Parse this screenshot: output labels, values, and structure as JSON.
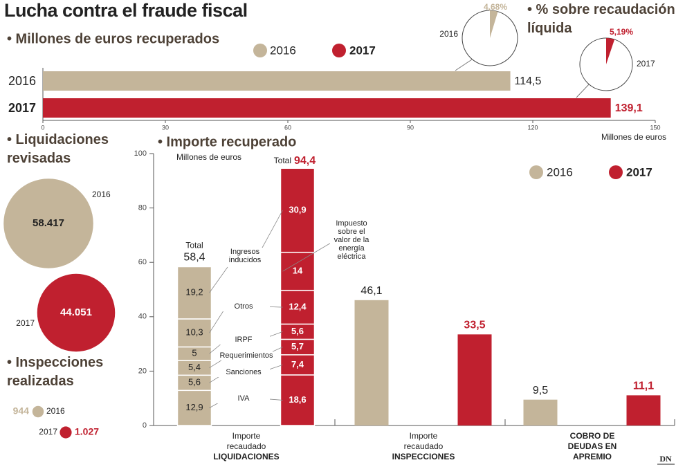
{
  "title": "Lucha contra el fraude fiscal",
  "logo": "DN",
  "chart_data": [
    {
      "type": "hbar",
      "title": "• Millones de euros recuperados",
      "categories": [
        "2016",
        "2017"
      ],
      "values": [
        114.5,
        139.1
      ],
      "value_labels": [
        "114,5",
        "139,1"
      ],
      "colors": [
        "#c4b59a",
        "#c0202f"
      ],
      "xlim": [
        0,
        150
      ],
      "xticks": [
        0,
        30,
        60,
        90,
        120,
        150
      ],
      "xlabel": "Millones de euros"
    },
    {
      "type": "pie",
      "title": "• % sobre recaudación líquida",
      "categories": [
        "2016",
        "2017"
      ],
      "values": [
        4.68,
        5.19
      ],
      "value_labels": [
        "4,68%",
        "5,19%"
      ],
      "colors": [
        "#c4b59a",
        "#c0202f"
      ]
    },
    {
      "type": "bubble",
      "title": "• Liquidaciones revisadas",
      "categories": [
        "2016",
        "2017"
      ],
      "values": [
        58417,
        44051
      ],
      "value_labels": [
        "58.417",
        "44.051"
      ],
      "colors": [
        "#c4b59a",
        "#c0202f"
      ]
    },
    {
      "type": "bubble",
      "title": "• Inspecciones realizadas",
      "categories": [
        "2016",
        "2017"
      ],
      "values": [
        944,
        1027
      ],
      "value_labels": [
        "944",
        "1.027"
      ],
      "colors": [
        "#c4b59a",
        "#c0202f"
      ]
    },
    {
      "type": "grouped_bar",
      "title": "• Importe recuperado",
      "ylabel": "Millones de euros",
      "ylim": [
        0,
        100
      ],
      "yticks": [
        0,
        20,
        40,
        60,
        80,
        100
      ],
      "categories": [
        {
          "label": "Importe recaudado",
          "bold": "LIQUIDACIONES"
        },
        {
          "label": "Importe recaudado",
          "bold": "INSPECCIONES"
        },
        {
          "bold": "COBRO DE DEUDAS EN APREMIO"
        }
      ],
      "series": [
        {
          "name": "2016",
          "color": "#c4b59a",
          "values": [
            58.4,
            46.1,
            9.5
          ],
          "value_labels": [
            "58,4",
            "46,1",
            "9,5"
          ]
        },
        {
          "name": "2017",
          "color": "#c0202f",
          "values": [
            94.4,
            33.5,
            11.1
          ],
          "value_labels": [
            "94,4",
            "33,5",
            "11,1"
          ]
        }
      ],
      "total_label": "Total",
      "breakdown": [
        {
          "name": "IVA",
          "values": [
            12.9,
            18.6
          ],
          "value_labels": [
            "12,9",
            "18,6"
          ]
        },
        {
          "name": "Sanciones",
          "values": [
            5.6,
            7.4
          ],
          "value_labels": [
            "5,6",
            "7,4"
          ]
        },
        {
          "name": "Requerimientos",
          "values": [
            5.4,
            5.7
          ],
          "value_labels": [
            "5,4",
            "5,7"
          ]
        },
        {
          "name": "IRPF",
          "values": [
            5,
            5.6
          ],
          "value_labels": [
            "5",
            "5,6"
          ]
        },
        {
          "name": "Otros",
          "values": [
            10.3,
            12.4
          ],
          "value_labels": [
            "10,3",
            "12,4"
          ]
        },
        {
          "name": "Impuesto sobre el valor de la energía eléctrica",
          "values": [
            null,
            14
          ],
          "value_labels": [
            null,
            "14"
          ]
        },
        {
          "name": "Ingresos inducidos",
          "values": [
            19.2,
            30.9
          ],
          "value_labels": [
            "19,2",
            "30,9"
          ]
        }
      ]
    }
  ]
}
